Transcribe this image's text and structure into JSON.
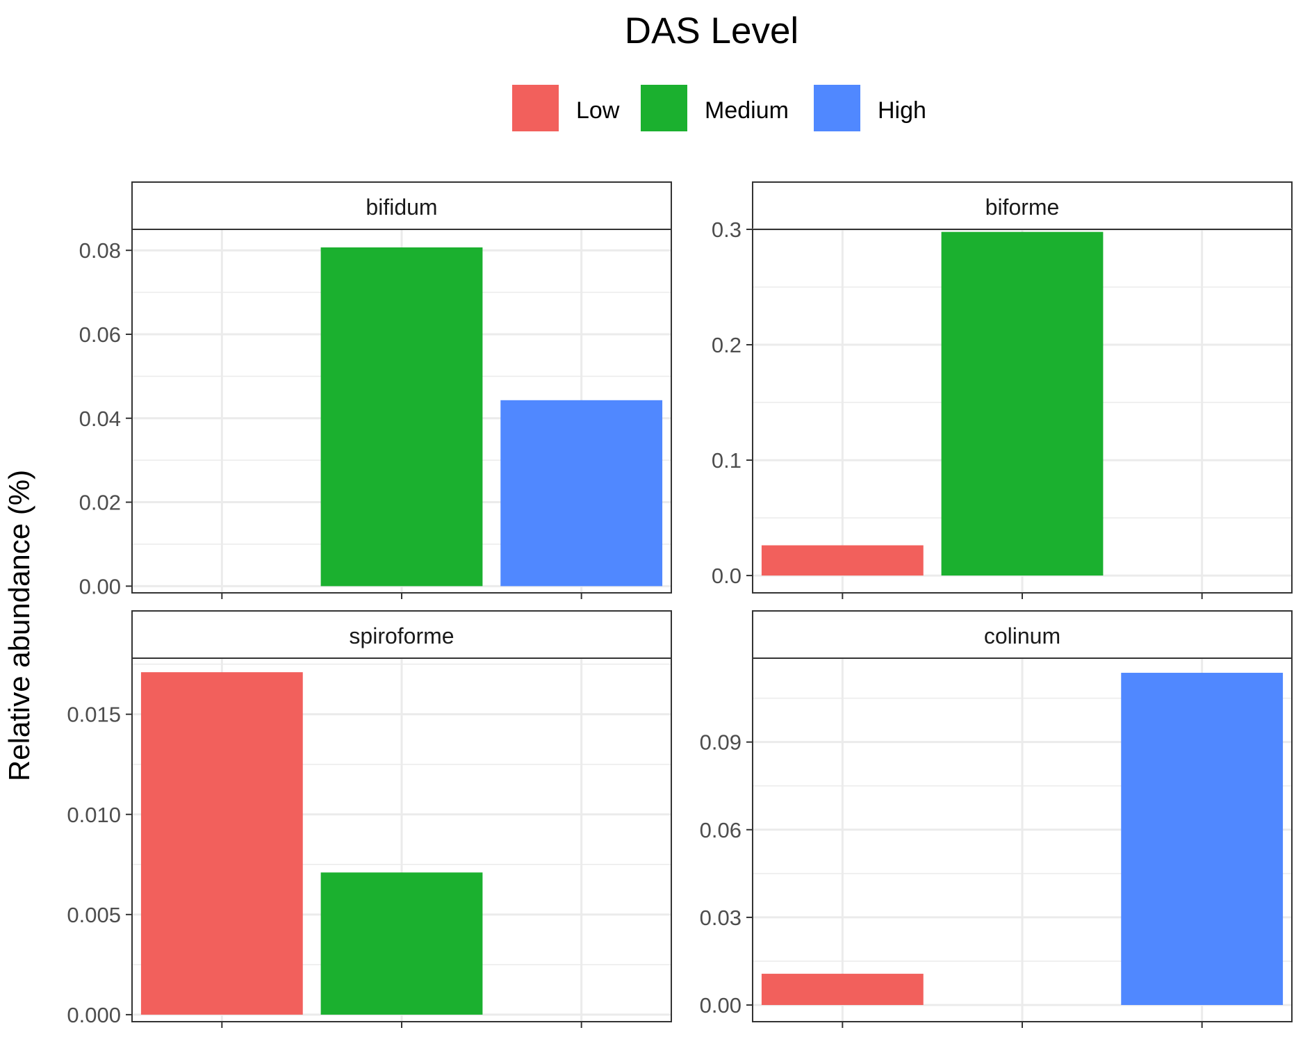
{
  "chart_data": {
    "type": "bar",
    "title": "",
    "legend": {
      "title": "DAS Level",
      "position": "top",
      "entries": [
        "Low",
        "Medium",
        "High"
      ]
    },
    "colors": {
      "Low": "#F2605C",
      "Medium": "#1BB02F",
      "High": "#5088FF"
    },
    "categories": [
      "Low",
      "Medium",
      "High"
    ],
    "ylabel": "Relative abundance (%)",
    "xlabel": "",
    "grid": true,
    "facet_layout": {
      "rows": 2,
      "cols": 2
    },
    "facets": [
      {
        "label": "bifidum",
        "ylim": [
          -0.0016,
          0.085
        ],
        "yticks": [
          0.0,
          0.02,
          0.04,
          0.06,
          0.08
        ],
        "ytick_labels": [
          "0.00",
          "0.02",
          "0.04",
          "0.06",
          "0.08"
        ],
        "values": [
          null,
          0.0807,
          0.0443
        ]
      },
      {
        "label": "biforme",
        "ylim": [
          -0.015,
          0.3
        ],
        "yticks": [
          0.0,
          0.1,
          0.2,
          0.3
        ],
        "ytick_labels": [
          "0.0",
          "0.1",
          "0.2",
          "0.3"
        ],
        "values": [
          0.0262,
          0.2978,
          null
        ]
      },
      {
        "label": "spiroforme",
        "ylim": [
          -0.00035,
          0.0178
        ],
        "yticks": [
          0.0,
          0.005,
          0.01,
          0.015
        ],
        "ytick_labels": [
          "0.000",
          "0.005",
          "0.010",
          "0.015"
        ],
        "values": [
          0.0171,
          0.0071,
          null
        ]
      },
      {
        "label": "colinum",
        "ylim": [
          -0.0057,
          0.1187
        ],
        "yticks": [
          0.0,
          0.03,
          0.06,
          0.09
        ],
        "ytick_labels": [
          "0.00",
          "0.03",
          "0.06",
          "0.09"
        ],
        "values": [
          0.0107,
          null,
          0.1137
        ]
      }
    ]
  }
}
